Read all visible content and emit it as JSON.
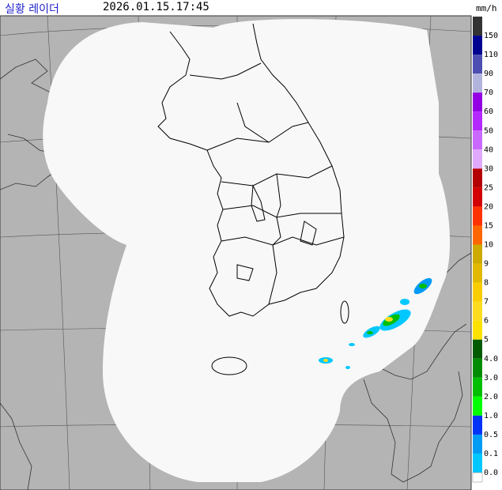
{
  "header": {
    "title": "실황 레이더",
    "time": "2026.01.15.17:45"
  },
  "legend": {
    "unit": "mm/h",
    "levels": [
      {
        "label": "150",
        "color": "#333333"
      },
      {
        "label": "110",
        "color": "#000390"
      },
      {
        "label": "90",
        "color": "#4c4eb1"
      },
      {
        "label": "70",
        "color": "#b3b4de"
      },
      {
        "label": "60",
        "color": "#9300e4"
      },
      {
        "label": "50",
        "color": "#b329ff"
      },
      {
        "label": "40",
        "color": "#c969ff"
      },
      {
        "label": "30",
        "color": "#e0a9ff"
      },
      {
        "label": "25",
        "color": "#b40000"
      },
      {
        "label": "20",
        "color": "#d20000"
      },
      {
        "label": "15",
        "color": "#ff3200"
      },
      {
        "label": "10",
        "color": "#ff6600"
      },
      {
        "label": "9",
        "color": "#ccaa00"
      },
      {
        "label": "8",
        "color": "#e0b900"
      },
      {
        "label": "7",
        "color": "#f9cd00"
      },
      {
        "label": "6",
        "color": "#ffdc1f"
      },
      {
        "label": "5",
        "color": "#ffe100"
      },
      {
        "label": "4.0",
        "color": "#005a00"
      },
      {
        "label": "3.0",
        "color": "#008c00"
      },
      {
        "label": "2.0",
        "color": "#00be00"
      },
      {
        "label": "1.0",
        "color": "#00ff00"
      },
      {
        "label": "0.5",
        "color": "#0033f5"
      },
      {
        "label": "0.1",
        "color": "#009bf5"
      },
      {
        "label": "0.0",
        "color": "#00c8ff"
      }
    ]
  }
}
